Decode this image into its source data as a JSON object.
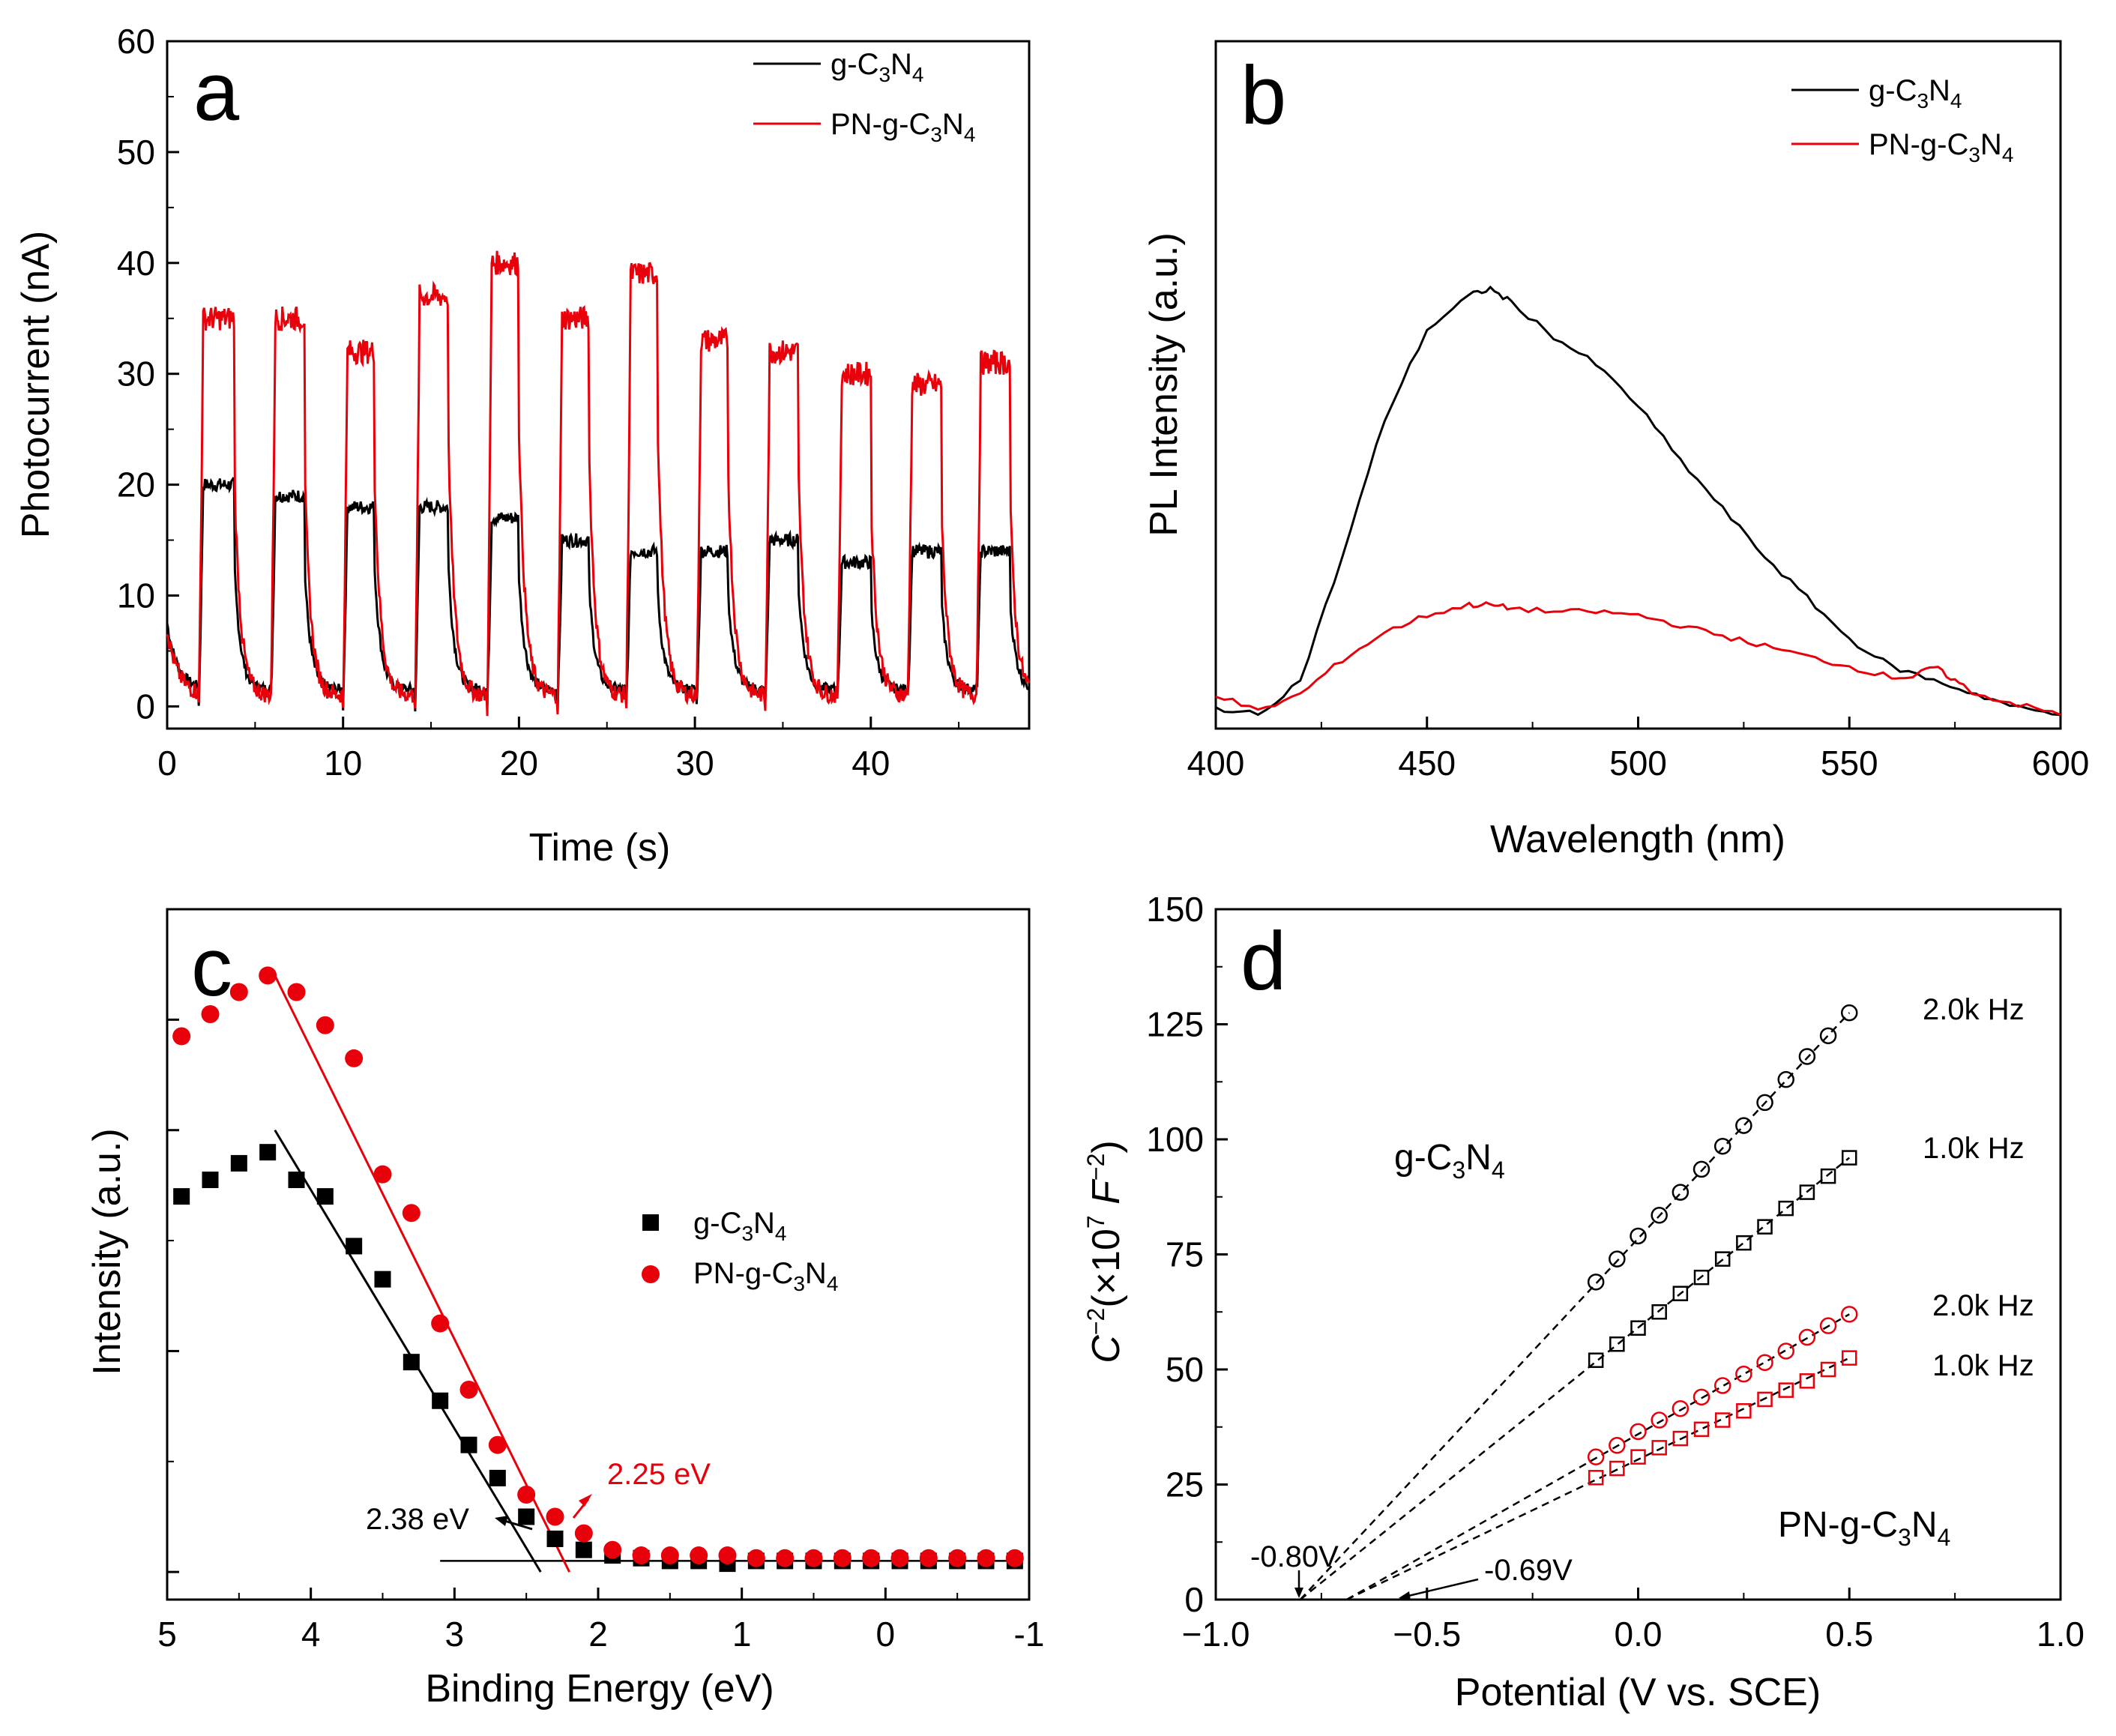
{
  "colors": {
    "black_series": "#000000",
    "red_series": "#e8000b"
  },
  "panels": {
    "a": {
      "label": "a"
    },
    "b": {
      "label": "b"
    },
    "c": {
      "label": "c",
      "ann_black": "2.38 eV",
      "ann_red": "2.25 eV"
    },
    "d": {
      "label": "d",
      "ann_080": "-0.80V",
      "ann_069": "-0.69V",
      "freq_black_20": "2.0k Hz",
      "freq_black_10": "1.0k Hz",
      "freq_red_20": "2.0k Hz",
      "freq_red_10": "1.0k Hz",
      "group_top": "g-C3N4",
      "group_bottom": "PN-g-C3N4"
    }
  },
  "chart_data": [
    {
      "id": "a",
      "type": "line",
      "title": "a",
      "xlabel": "Time (s)",
      "ylabel": "Photocurrent (nA)",
      "xlim": [
        0,
        49
      ],
      "ylim": [
        -2,
        60
      ],
      "xticks": [
        0,
        10,
        20,
        30,
        40
      ],
      "yticks": [
        0,
        10,
        20,
        30,
        40,
        50,
        60
      ],
      "legend": "top-right",
      "series": [
        {
          "name": "g-C3N4",
          "color": "#000000",
          "on_periods": [
            [
              1.8,
              3.8
            ],
            [
              5.9,
              7.8
            ],
            [
              10.0,
              11.8
            ],
            [
              14.1,
              16.0
            ],
            [
              18.2,
              20.0
            ],
            [
              22.2,
              24.0
            ],
            [
              26.1,
              27.9
            ],
            [
              30.1,
              31.9
            ],
            [
              34.0,
              35.9
            ],
            [
              38.1,
              40.0
            ],
            [
              42.1,
              44.0
            ],
            [
              46.0,
              47.9
            ]
          ],
          "on_values": [
            20,
            19,
            18,
            18,
            17,
            15,
            14,
            14,
            15,
            13,
            14,
            14
          ],
          "baseline": 1.5
        },
        {
          "name": "PN-g-C3N4",
          "color": "#e8000b",
          "on_periods": [
            [
              1.8,
              3.8
            ],
            [
              5.9,
              7.8
            ],
            [
              10.0,
              11.8
            ],
            [
              14.1,
              16.0
            ],
            [
              18.2,
              20.0
            ],
            [
              22.2,
              24.0
            ],
            [
              26.1,
              27.9
            ],
            [
              30.1,
              31.9
            ],
            [
              34.0,
              35.9
            ],
            [
              38.1,
              40.0
            ],
            [
              42.1,
              44.0
            ],
            [
              46.0,
              47.9
            ]
          ],
          "on_values": [
            35,
            35,
            32,
            37,
            40,
            35,
            39,
            33,
            32,
            30,
            29,
            31
          ],
          "baseline": 1.0
        }
      ]
    },
    {
      "id": "b",
      "type": "line",
      "title": "b",
      "xlabel": "Wavelength (nm)",
      "ylabel": "PL Intensity (a.u.)",
      "xlim": [
        400,
        600
      ],
      "xticks": [
        400,
        450,
        500,
        550,
        600
      ],
      "legend": "top-right",
      "series": [
        {
          "name": "g-C3N4",
          "color": "#000000",
          "x": [
            400,
            410,
            420,
            430,
            440,
            450,
            460,
            465,
            470,
            480,
            490,
            500,
            510,
            520,
            530,
            540,
            550,
            560,
            570,
            580,
            590,
            600
          ],
          "y": [
            0.03,
            0.02,
            0.07,
            0.25,
            0.45,
            0.58,
            0.63,
            0.64,
            0.62,
            0.57,
            0.53,
            0.47,
            0.39,
            0.32,
            0.25,
            0.19,
            0.13,
            0.09,
            0.07,
            0.05,
            0.03,
            0.02
          ]
        },
        {
          "name": "PN-g-C3N4",
          "color": "#e8000b",
          "x": [
            400,
            410,
            420,
            430,
            440,
            450,
            460,
            465,
            470,
            480,
            490,
            500,
            510,
            520,
            530,
            540,
            550,
            560,
            565,
            570,
            575,
            580,
            590,
            600
          ],
          "y": [
            0.05,
            0.025,
            0.05,
            0.1,
            0.14,
            0.165,
            0.18,
            0.18,
            0.175,
            0.17,
            0.17,
            0.165,
            0.15,
            0.135,
            0.12,
            0.105,
            0.09,
            0.075,
            0.075,
            0.09,
            0.07,
            0.05,
            0.035,
            0.02
          ]
        }
      ]
    },
    {
      "id": "c",
      "type": "scatter",
      "title": "c",
      "xlabel": "Binding Energy (eV)",
      "ylabel": "Intensity (a.u.)",
      "xlim": [
        5,
        -1
      ],
      "xticks": [
        5,
        4,
        3,
        2,
        1,
        0,
        -1
      ],
      "legend": "center-right",
      "series": [
        {
          "name": "g-C3N4",
          "color": "#000000",
          "marker": "square",
          "x": [
            4.9,
            4.7,
            4.5,
            4.3,
            4.1,
            3.9,
            3.7,
            3.5,
            3.3,
            3.1,
            2.9,
            2.7,
            2.5,
            2.3,
            2.1,
            1.9,
            1.7,
            1.5,
            1.3,
            1.1,
            0.9,
            0.7,
            0.5,
            0.3,
            0.1,
            -0.1,
            -0.3,
            -0.5,
            -0.7,
            -0.9
          ],
          "y": [
            0.68,
            0.71,
            0.74,
            0.76,
            0.71,
            0.68,
            0.59,
            0.53,
            0.38,
            0.31,
            0.23,
            0.17,
            0.1,
            0.06,
            0.04,
            0.03,
            0.025,
            0.02,
            0.02,
            0.015,
            0.02,
            0.02,
            0.02,
            0.02,
            0.02,
            0.02,
            0.02,
            0.02,
            0.02,
            0.02
          ]
        },
        {
          "name": "PN-g-C3N4",
          "color": "#e8000b",
          "marker": "circle",
          "x": [
            4.9,
            4.7,
            4.5,
            4.3,
            4.1,
            3.9,
            3.7,
            3.5,
            3.3,
            3.1,
            2.9,
            2.7,
            2.5,
            2.3,
            2.1,
            1.9,
            1.7,
            1.5,
            1.3,
            1.1,
            0.9,
            0.7,
            0.5,
            0.3,
            0.1,
            -0.1,
            -0.3,
            -0.5,
            -0.7,
            -0.9
          ],
          "y": [
            0.97,
            1.01,
            1.05,
            1.08,
            1.05,
            0.99,
            0.93,
            0.72,
            0.65,
            0.45,
            0.33,
            0.23,
            0.14,
            0.1,
            0.07,
            0.04,
            0.03,
            0.03,
            0.03,
            0.03,
            0.025,
            0.025,
            0.025,
            0.025,
            0.025,
            0.025,
            0.025,
            0.025,
            0.025,
            0.025
          ]
        }
      ],
      "fit_lines": [
        {
          "series": "g-C3N4",
          "x": [
            4.25,
            2.4
          ],
          "y": [
            0.8,
            0.0
          ],
          "bandgap_eV": 2.38
        },
        {
          "series": "PN-g-C3N4",
          "x": [
            4.25,
            2.2
          ],
          "y": [
            1.08,
            0.0
          ],
          "bandgap_eV": 2.25
        }
      ]
    },
    {
      "id": "d",
      "type": "scatter",
      "title": "d",
      "xlabel": "Potential (V vs. SCE)",
      "ylabel": "C^-2 (×10^7 F^-2)",
      "xlim": [
        -1.0,
        1.0
      ],
      "ylim": [
        0,
        150
      ],
      "xticks": [
        -1.0,
        -0.5,
        0.0,
        0.5,
        1.0
      ],
      "yticks": [
        0,
        25,
        50,
        75,
        100,
        125,
        150
      ],
      "series": [
        {
          "name": "g-C3N4 2.0k Hz",
          "color": "#000000",
          "marker": "circle",
          "x": [
            -0.1,
            -0.05,
            0.0,
            0.05,
            0.1,
            0.15,
            0.2,
            0.25,
            0.3,
            0.35,
            0.4,
            0.45,
            0.5
          ],
          "y": [
            69,
            74,
            79,
            83.5,
            88.5,
            93.5,
            98.5,
            103,
            108,
            113,
            118,
            122.5,
            127.5
          ],
          "flat_band_V": -0.8
        },
        {
          "name": "g-C3N4 1.0k Hz",
          "color": "#000000",
          "marker": "square",
          "x": [
            -0.1,
            -0.05,
            0.0,
            0.05,
            0.1,
            0.15,
            0.2,
            0.25,
            0.3,
            0.35,
            0.4,
            0.45,
            0.5
          ],
          "y": [
            52,
            55.5,
            59,
            62.5,
            66.5,
            70,
            74,
            77.5,
            81,
            85,
            88.5,
            92,
            96
          ],
          "flat_band_V": -0.8
        },
        {
          "name": "PN-g-C3N4 2.0k Hz",
          "color": "#e8000b",
          "marker": "circle",
          "x": [
            -0.1,
            -0.05,
            0.0,
            0.05,
            0.1,
            0.15,
            0.2,
            0.25,
            0.3,
            0.35,
            0.4,
            0.45,
            0.5
          ],
          "y": [
            31,
            33.5,
            36.5,
            39,
            41.5,
            44,
            46.5,
            49,
            51.5,
            54,
            57,
            59.5,
            62
          ],
          "flat_band_V": -0.69
        },
        {
          "name": "PN-g-C3N4 1.0k Hz",
          "color": "#e8000b",
          "marker": "square",
          "x": [
            -0.1,
            -0.05,
            0.0,
            0.05,
            0.1,
            0.15,
            0.2,
            0.25,
            0.3,
            0.35,
            0.4,
            0.45,
            0.5
          ],
          "y": [
            26.5,
            28.5,
            31,
            33,
            35,
            37,
            39,
            41,
            43.5,
            45.5,
            47.5,
            50,
            52.5
          ],
          "flat_band_V": -0.69
        }
      ]
    }
  ]
}
